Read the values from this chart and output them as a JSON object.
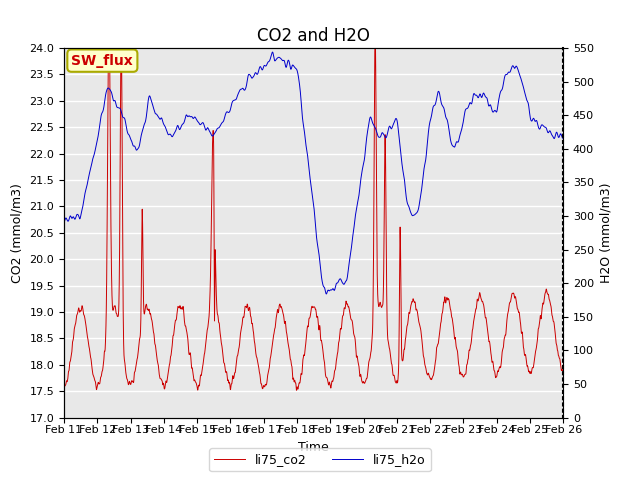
{
  "title": "CO2 and H2O",
  "xlabel": "Time",
  "ylabel_left": "CO2 (mmol/m3)",
  "ylabel_right": "H2O (mmol/m3)",
  "legend_label_co2": "li75_co2",
  "legend_label_h2o": "li75_h2o",
  "annotation_text": "SW_flux",
  "annotation_bg": "#ffffcc",
  "annotation_border": "#aaaa00",
  "co2_color": "#cc0000",
  "h2o_color": "#0000cc",
  "ylim_left": [
    17.0,
    24.0
  ],
  "ylim_right": [
    0,
    550
  ],
  "plot_bg": "#e8e8e8",
  "grid_color": "#ffffff",
  "fig_bg": "#ffffff",
  "title_fontsize": 12,
  "axis_label_fontsize": 9,
  "tick_label_fontsize": 8,
  "legend_fontsize": 9
}
